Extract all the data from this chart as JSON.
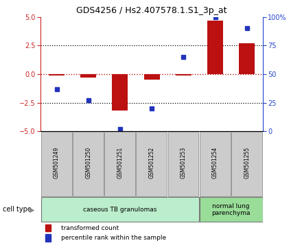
{
  "title": "GDS4256 / Hs2.407578.1.S1_3p_at",
  "samples": [
    "GSM501249",
    "GSM501250",
    "GSM501251",
    "GSM501252",
    "GSM501253",
    "GSM501254",
    "GSM501255"
  ],
  "transformed_count": [
    -0.1,
    -0.3,
    -3.2,
    -0.5,
    -0.15,
    4.7,
    2.7
  ],
  "percentile_rank": [
    37,
    27,
    2,
    20,
    65,
    100,
    90
  ],
  "ylim_left": [
    -5,
    5
  ],
  "ylim_right": [
    0,
    100
  ],
  "yticks_left": [
    -5,
    -2.5,
    0,
    2.5,
    5
  ],
  "yticks_right": [
    0,
    25,
    50,
    75,
    100
  ],
  "bar_color": "#bb1111",
  "dot_color": "#2233bb",
  "cell_type_groups": [
    {
      "label": "caseous TB granulomas",
      "start": 0,
      "end": 5,
      "color": "#bbeecc"
    },
    {
      "label": "normal lung\nparenchyma",
      "start": 5,
      "end": 7,
      "color": "#99dd99"
    }
  ],
  "cell_type_label": "cell type",
  "legend_bar_label": "transformed count",
  "legend_dot_label": "percentile rank within the sample",
  "left_tick_color": "#cc2222",
  "right_tick_color": "#2244cc",
  "bg_color": "#ffffff",
  "sample_box_color": "#cccccc",
  "sample_box_edge": "#999999"
}
